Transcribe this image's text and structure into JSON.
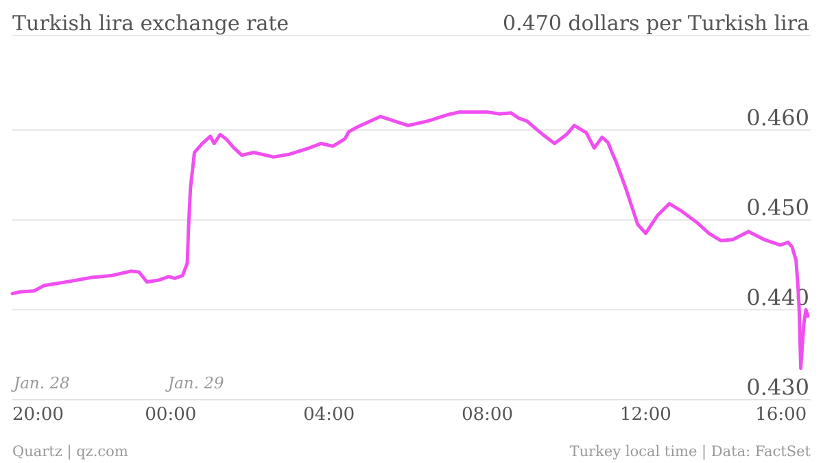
{
  "chart_data": {
    "type": "line",
    "title": "Turkish lira exchange rate",
    "ylabel": "0.470 dollars per Turkish lira",
    "source_left": "Quartz | qz.com",
    "source_right": "Turkey local time | Data: FactSet",
    "x_unit": "hours since 20:00 Jan. 28",
    "xlim": [
      0,
      20.1
    ],
    "ylim": [
      0.4305,
      0.4705
    ],
    "x_ticks": [
      {
        "x": 0,
        "label": "20:00"
      },
      {
        "x": 4,
        "label": "00:00"
      },
      {
        "x": 8,
        "label": "04:00"
      },
      {
        "x": 12,
        "label": "08:00"
      },
      {
        "x": 16,
        "label": "12:00"
      },
      {
        "x": 20,
        "label": "16:00"
      }
    ],
    "date_labels": [
      {
        "x": 0,
        "label": "Jan. 28"
      },
      {
        "x": 4,
        "label": "Jan. 29"
      }
    ],
    "y_ticks": [
      {
        "y": 0.46,
        "label": "0.460"
      },
      {
        "y": 0.45,
        "label": "0.450"
      },
      {
        "y": 0.44,
        "label": "0.440"
      },
      {
        "y": 0.43,
        "label": "0.430"
      }
    ],
    "grid": true,
    "color": "#f04ff0",
    "series": [
      {
        "name": "",
        "x": [
          0,
          0.2,
          0.55,
          0.8,
          1.5,
          2.0,
          2.5,
          3.0,
          3.2,
          3.4,
          3.7,
          3.95,
          4.1,
          4.3,
          4.42,
          4.45,
          4.5,
          4.6,
          4.8,
          5.0,
          5.1,
          5.25,
          5.4,
          5.6,
          5.8,
          6.1,
          6.6,
          7.0,
          7.5,
          7.8,
          8.1,
          8.4,
          8.5,
          8.7,
          8.9,
          9.3,
          10.0,
          10.5,
          11.0,
          11.3,
          11.6,
          11.75,
          11.8,
          12.0,
          12.3,
          12.6,
          12.8,
          13.0,
          13.4,
          13.7,
          14.0,
          14.2,
          14.5,
          14.7,
          14.9,
          15.05,
          15.15,
          15.25,
          15.5,
          15.8,
          16.0,
          16.3,
          16.6,
          16.9,
          17.3,
          17.6,
          17.9,
          18.2,
          18.6,
          19.0,
          19.4,
          19.6,
          19.7,
          19.8,
          19.85,
          19.88,
          19.92,
          19.95,
          20.0,
          20.05,
          20.1
        ],
        "y": [
          0.4418,
          0.442,
          0.4421,
          0.4427,
          0.4432,
          0.4436,
          0.4438,
          0.4443,
          0.4442,
          0.4431,
          0.4433,
          0.4437,
          0.4435,
          0.4438,
          0.4452,
          0.449,
          0.4535,
          0.4575,
          0.4585,
          0.4593,
          0.4585,
          0.4595,
          0.459,
          0.458,
          0.4572,
          0.4575,
          0.457,
          0.4573,
          0.458,
          0.4585,
          0.4582,
          0.459,
          0.4598,
          0.4603,
          0.4607,
          0.4615,
          0.4605,
          0.461,
          0.4617,
          0.462,
          0.462,
          0.462,
          0.462,
          0.462,
          0.4618,
          0.4619,
          0.4613,
          0.461,
          0.4595,
          0.4585,
          0.4595,
          0.4605,
          0.4597,
          0.458,
          0.4592,
          0.4586,
          0.4575,
          0.4565,
          0.4535,
          0.4495,
          0.4485,
          0.4505,
          0.4518,
          0.451,
          0.4497,
          0.4485,
          0.4477,
          0.4478,
          0.4487,
          0.4478,
          0.4472,
          0.4475,
          0.447,
          0.4455,
          0.4425,
          0.44,
          0.4335,
          0.4355,
          0.4385,
          0.44,
          0.4393
        ]
      }
    ]
  }
}
